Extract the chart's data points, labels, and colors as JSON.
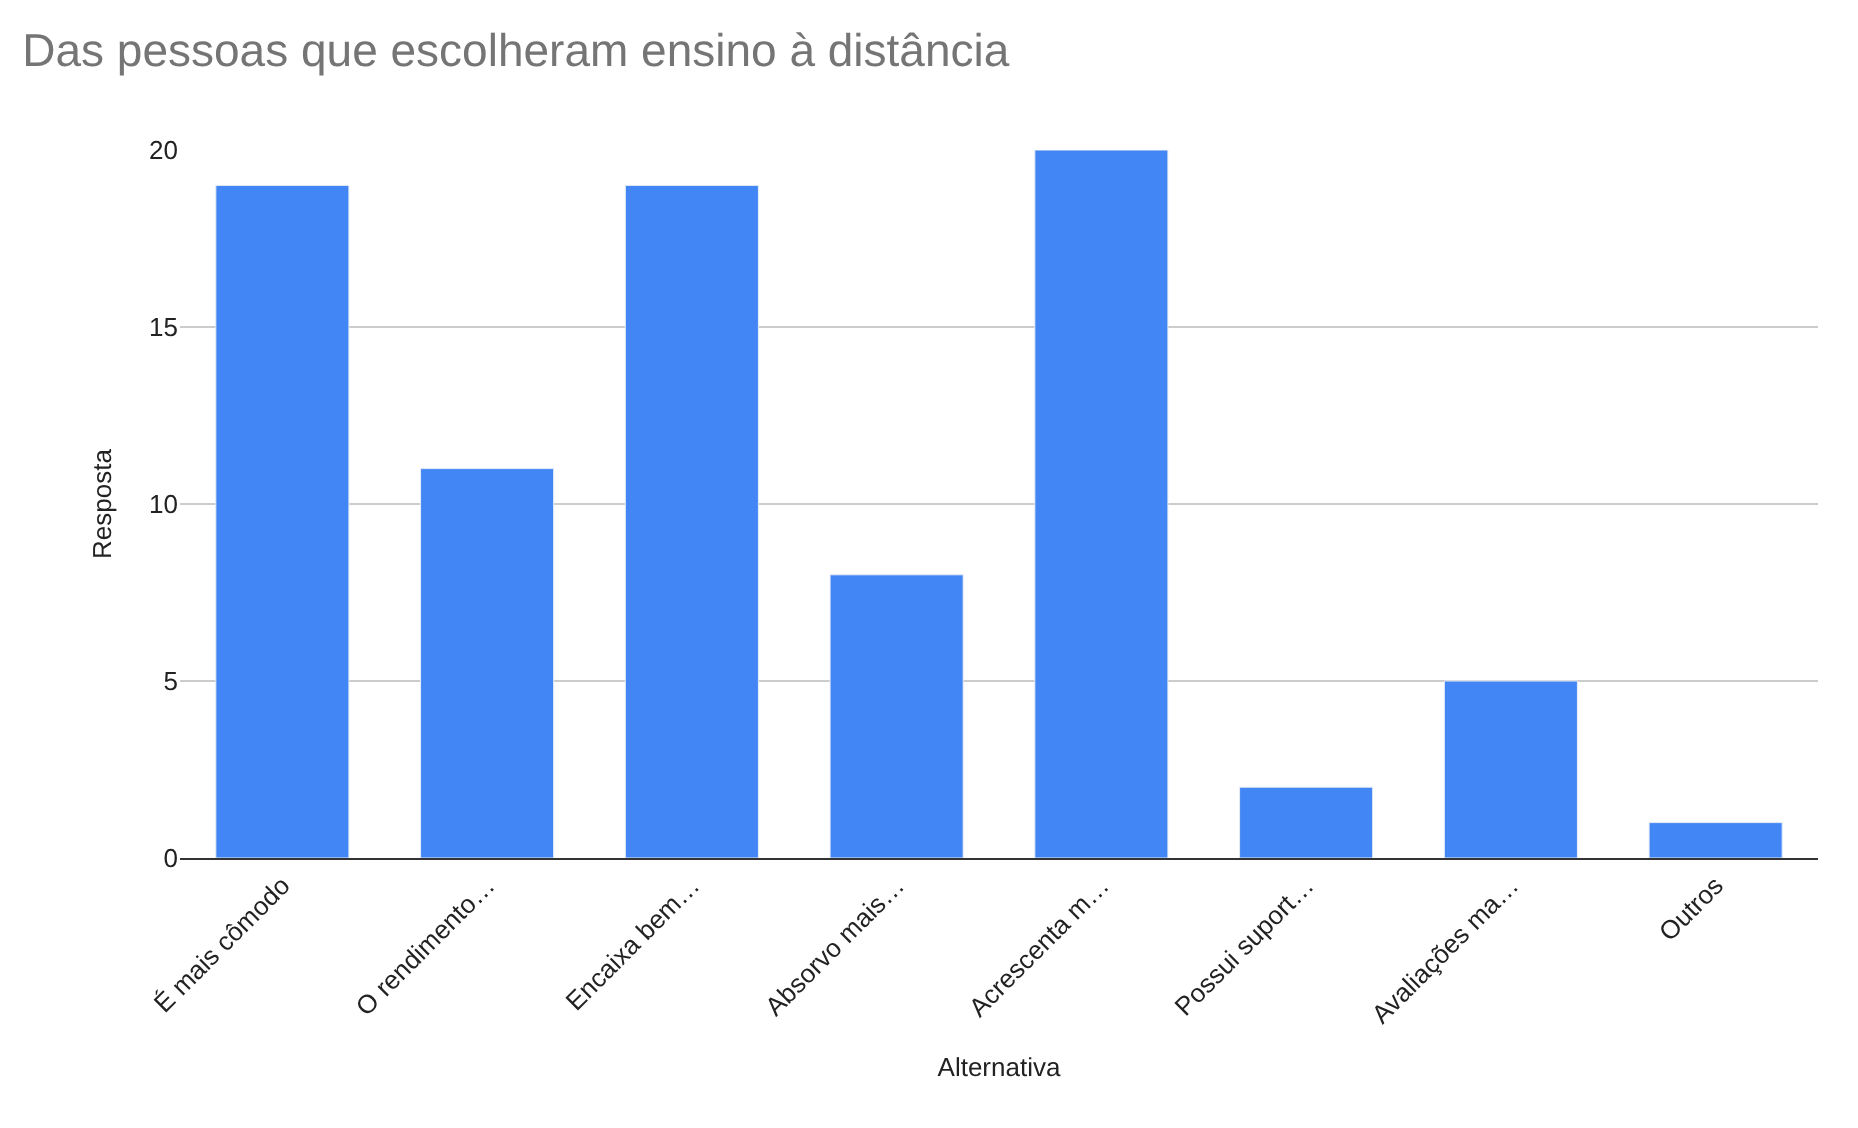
{
  "chart_data": {
    "type": "bar",
    "title": "Das pessoas que escolheram ensino à distância",
    "xlabel": "Alternativa",
    "ylabel": "Resposta",
    "categories": [
      "É mais cômodo",
      "O rendimento…",
      "Encaixa bem…",
      "Absorvo mais…",
      "Acrescenta m…",
      "Possui suport…",
      "Avaliações ma…",
      "Outros"
    ],
    "values": [
      19,
      11,
      19,
      8,
      20,
      2,
      5,
      1
    ],
    "color": "#4285f4",
    "ylim": [
      0,
      20
    ],
    "yticks": [
      0,
      5,
      10,
      15,
      20
    ],
    "grid": "y",
    "legend": false
  }
}
